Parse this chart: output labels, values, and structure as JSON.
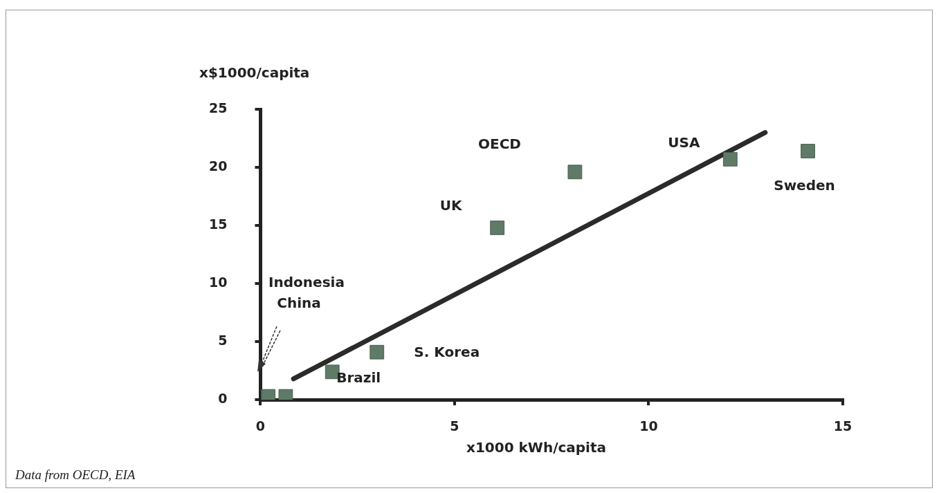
{
  "chart_data": {
    "type": "scatter",
    "xlabel": "x1000 kWh/capita",
    "ylabel": "x$1000/capita",
    "xlim": [
      0,
      15
    ],
    "ylim": [
      0,
      25
    ],
    "xticks": [
      0,
      5,
      10,
      15
    ],
    "yticks": [
      0,
      5,
      10,
      15,
      20,
      25
    ],
    "grid": false,
    "legend": false,
    "marker": "square",
    "series": [
      {
        "color": "#5f7a66",
        "x": [
          0.2,
          0.65,
          1.85,
          3.0,
          6.1,
          8.1,
          12.1,
          14.1
        ],
        "values": [
          0.3,
          0.3,
          2.4,
          4.1,
          14.8,
          19.6,
          20.7,
          21.4
        ]
      },
      {
        "type": "line",
        "color": "#2b2b2b",
        "marker": "none",
        "x": [
          0.85,
          13.0
        ],
        "values": [
          1.8,
          23.0
        ]
      }
    ],
    "annotations": [
      {
        "text": "Brazil",
        "x": 1.85,
        "y": 2.4
      },
      {
        "text": "S. Korea",
        "x": 3.0,
        "y": 4.1
      },
      {
        "text": "UK",
        "x": 6.1,
        "y": 14.8
      },
      {
        "text": "USA",
        "x": 12.1,
        "y": 20.7
      },
      {
        "text": "Sweden",
        "x": 14.1,
        "y": 21.4
      },
      "Indonesia",
      "China",
      "OECD",
      "Data from OECD, EIA"
    ]
  }
}
